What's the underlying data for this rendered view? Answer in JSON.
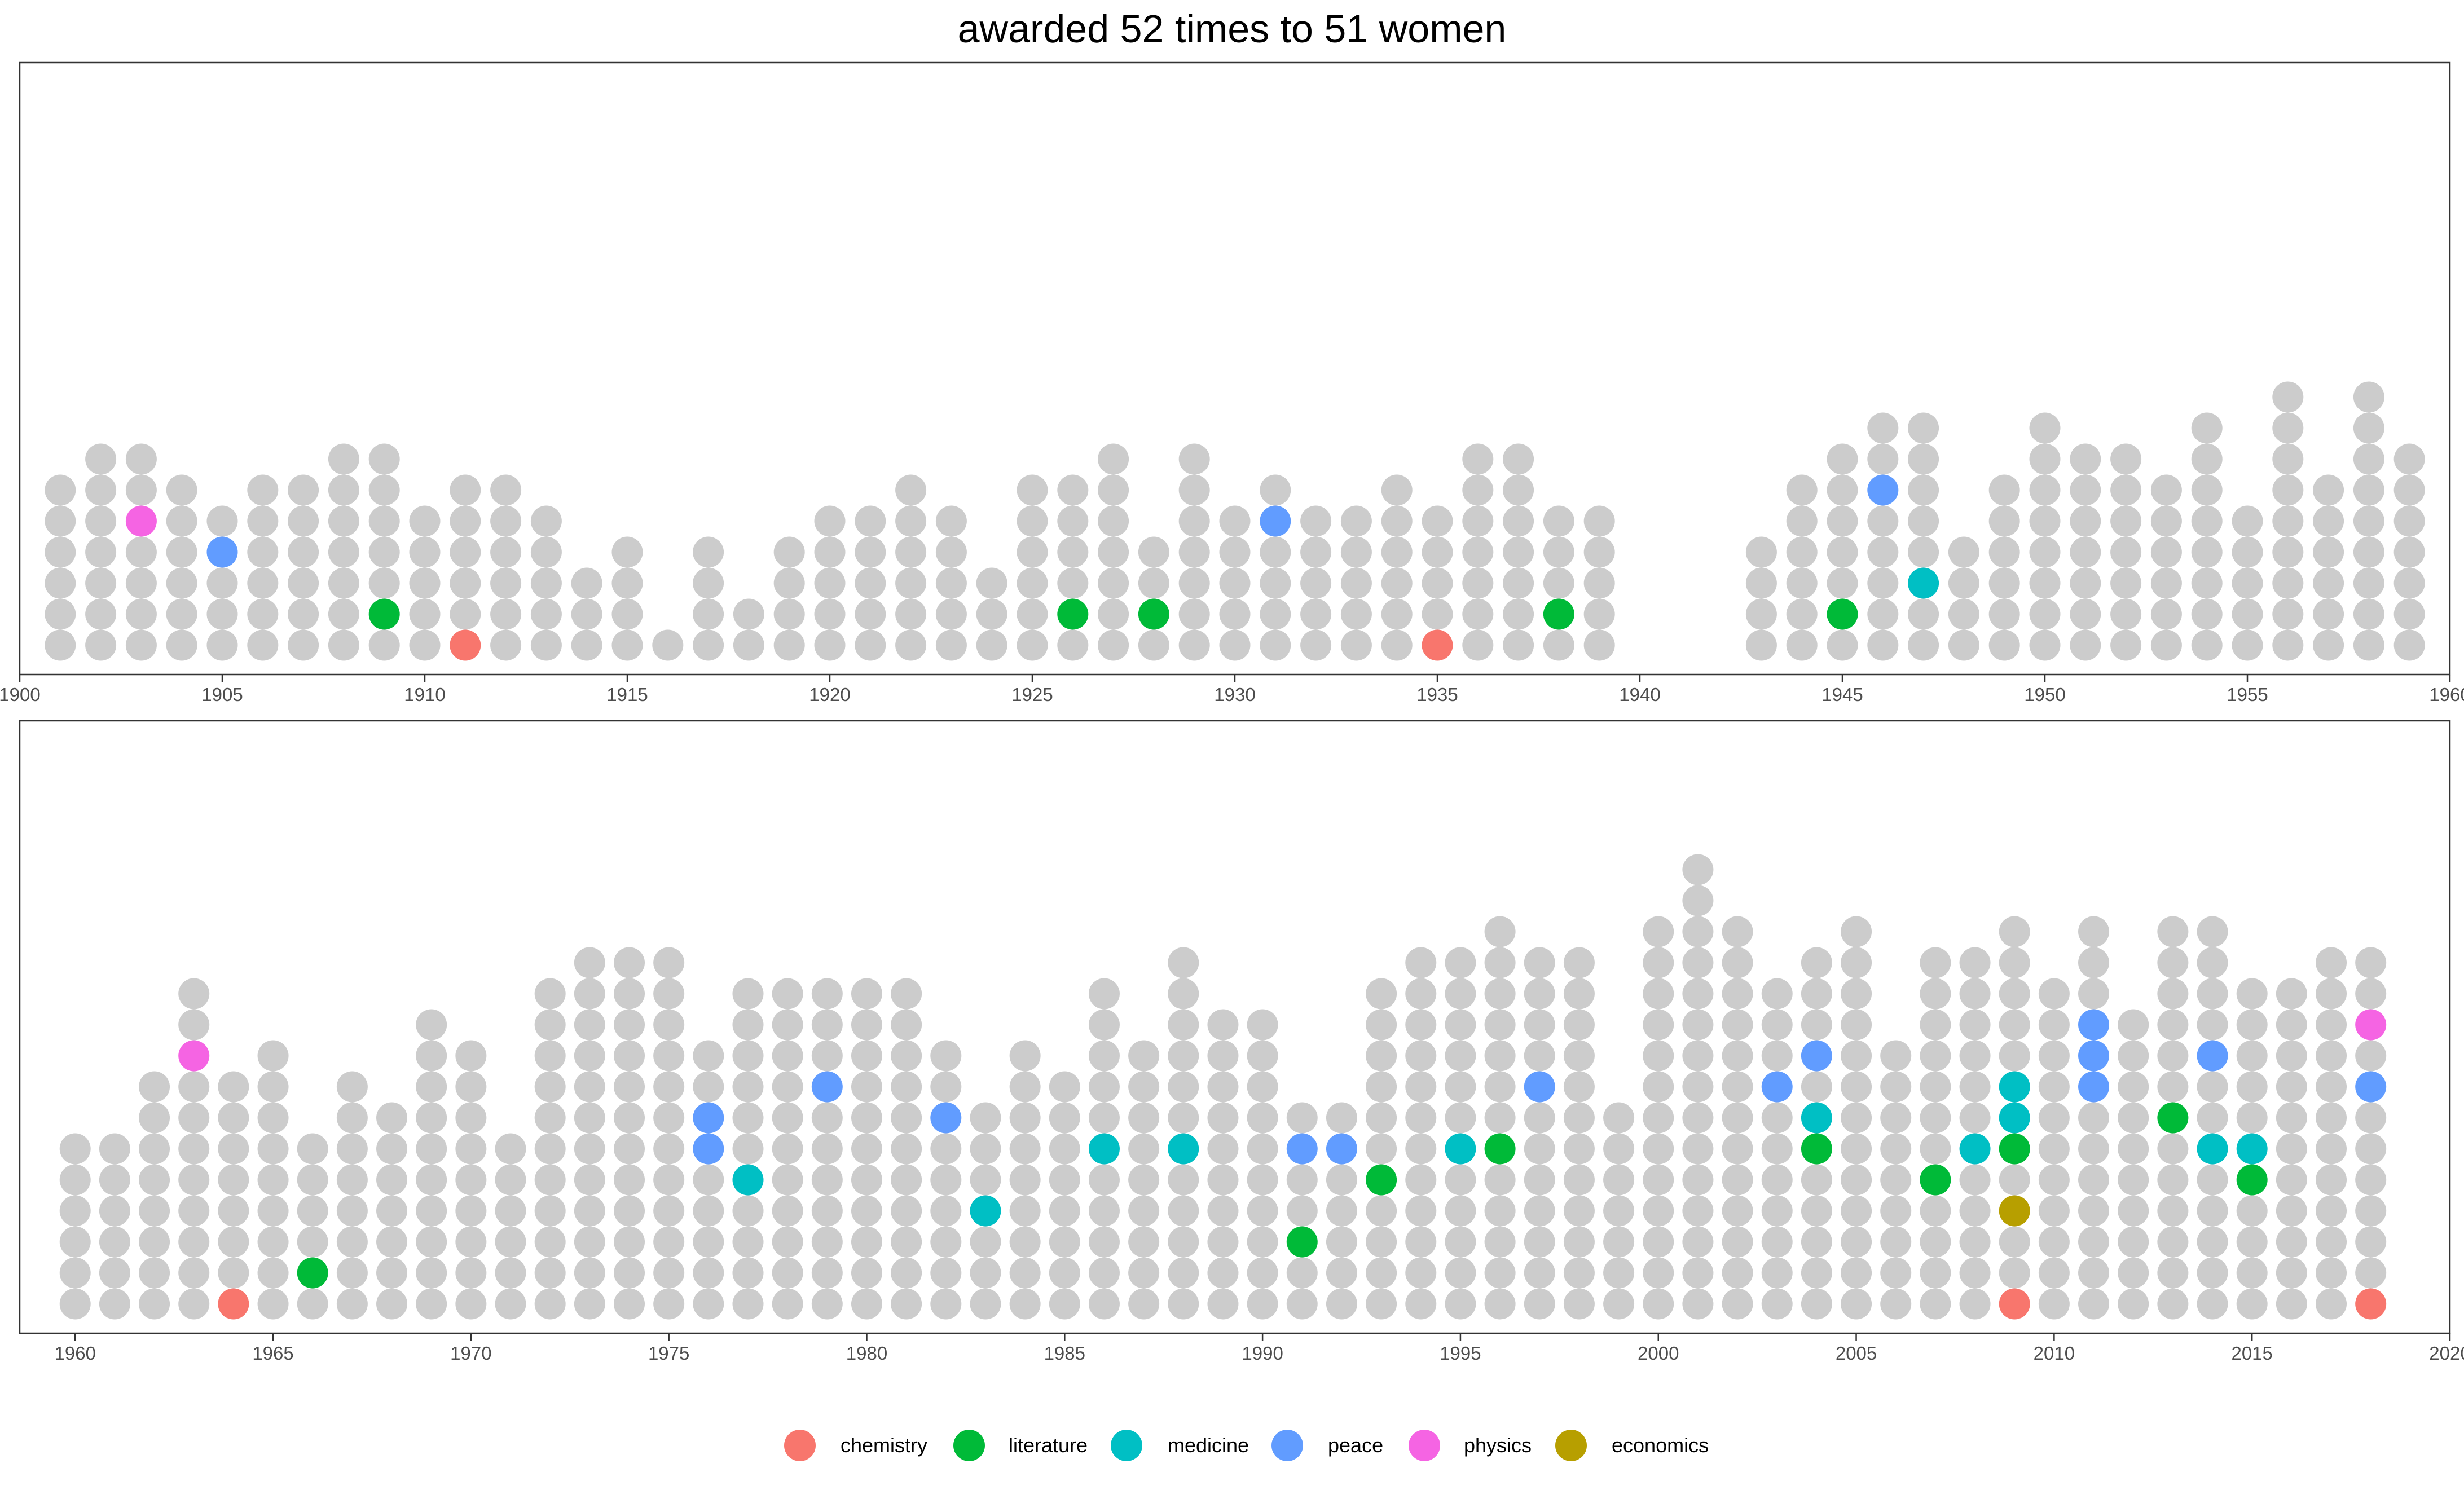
{
  "chart_data": {
    "type": "scatter",
    "title": "awarded 52 times to 51 women",
    "xlabel": "",
    "ylabel": "",
    "grid": false,
    "legend_position": "bottom",
    "base_color": "#cccccc",
    "legend": [
      {
        "name": "chemistry",
        "color": "#F8766D"
      },
      {
        "name": "literature",
        "color": "#00BA38"
      },
      {
        "name": "medicine",
        "color": "#00BFC4"
      },
      {
        "name": "peace",
        "color": "#619CFF"
      },
      {
        "name": "physics",
        "color": "#F564E3"
      },
      {
        "name": "economics",
        "color": "#B79F00"
      }
    ],
    "panels": [
      {
        "xlim": [
          1900,
          1960
        ],
        "x_ticks": [
          "1900",
          "1905",
          "1910",
          "1915",
          "1920",
          "1925",
          "1930",
          "1935",
          "1940",
          "1945",
          "1950",
          "1955",
          "1960"
        ],
        "years": [
          [
            1901,
            6
          ],
          [
            1902,
            7
          ],
          [
            1903,
            7
          ],
          [
            1904,
            6
          ],
          [
            1905,
            5
          ],
          [
            1906,
            6
          ],
          [
            1907,
            6
          ],
          [
            1908,
            7
          ],
          [
            1909,
            7
          ],
          [
            1910,
            5
          ],
          [
            1911,
            6
          ],
          [
            1912,
            6
          ],
          [
            1913,
            5
          ],
          [
            1914,
            3
          ],
          [
            1915,
            4
          ],
          [
            1916,
            1
          ],
          [
            1917,
            4
          ],
          [
            1918,
            2
          ],
          [
            1919,
            4
          ],
          [
            1920,
            5
          ],
          [
            1921,
            5
          ],
          [
            1922,
            6
          ],
          [
            1923,
            5
          ],
          [
            1924,
            3
          ],
          [
            1925,
            6
          ],
          [
            1926,
            6
          ],
          [
            1927,
            7
          ],
          [
            1928,
            4
          ],
          [
            1929,
            7
          ],
          [
            1930,
            5
          ],
          [
            1931,
            6
          ],
          [
            1932,
            5
          ],
          [
            1933,
            5
          ],
          [
            1934,
            6
          ],
          [
            1935,
            5
          ],
          [
            1936,
            7
          ],
          [
            1937,
            7
          ],
          [
            1938,
            5
          ],
          [
            1939,
            5
          ],
          [
            1943,
            4
          ],
          [
            1944,
            6
          ],
          [
            1945,
            7
          ],
          [
            1946,
            8
          ],
          [
            1947,
            8
          ],
          [
            1948,
            4
          ],
          [
            1949,
            6
          ],
          [
            1950,
            8
          ],
          [
            1951,
            7
          ],
          [
            1952,
            7
          ],
          [
            1953,
            6
          ],
          [
            1954,
            8
          ],
          [
            1955,
            5
          ],
          [
            1956,
            9
          ],
          [
            1957,
            6
          ],
          [
            1958,
            9
          ],
          [
            1959,
            7
          ]
        ],
        "highlights": [
          [
            1903,
            5,
            "physics"
          ],
          [
            1905,
            4,
            "peace"
          ],
          [
            1909,
            2,
            "literature"
          ],
          [
            1911,
            1,
            "chemistry"
          ],
          [
            1926,
            2,
            "literature"
          ],
          [
            1928,
            2,
            "literature"
          ],
          [
            1931,
            5,
            "peace"
          ],
          [
            1935,
            1,
            "chemistry"
          ],
          [
            1938,
            2,
            "literature"
          ],
          [
            1945,
            2,
            "literature"
          ],
          [
            1946,
            6,
            "peace"
          ],
          [
            1947,
            3,
            "medicine"
          ]
        ]
      },
      {
        "xlim": [
          1958.6,
          2020
        ],
        "x_ticks": [
          "1960",
          "1965",
          "1970",
          "1975",
          "1980",
          "1985",
          "1990",
          "1995",
          "2000",
          "2005",
          "2010",
          "2015",
          "2020"
        ],
        "years": [
          [
            1960,
            6
          ],
          [
            1961,
            6
          ],
          [
            1962,
            8
          ],
          [
            1963,
            11
          ],
          [
            1964,
            8
          ],
          [
            1965,
            9
          ],
          [
            1966,
            6
          ],
          [
            1967,
            8
          ],
          [
            1968,
            7
          ],
          [
            1969,
            10
          ],
          [
            1970,
            9
          ],
          [
            1971,
            6
          ],
          [
            1972,
            11
          ],
          [
            1973,
            12
          ],
          [
            1974,
            12
          ],
          [
            1975,
            12
          ],
          [
            1976,
            9
          ],
          [
            1977,
            11
          ],
          [
            1978,
            11
          ],
          [
            1979,
            11
          ],
          [
            1980,
            11
          ],
          [
            1981,
            11
          ],
          [
            1982,
            9
          ],
          [
            1983,
            7
          ],
          [
            1984,
            9
          ],
          [
            1985,
            8
          ],
          [
            1986,
            11
          ],
          [
            1987,
            9
          ],
          [
            1988,
            12
          ],
          [
            1989,
            10
          ],
          [
            1990,
            10
          ],
          [
            1991,
            7
          ],
          [
            1992,
            7
          ],
          [
            1993,
            11
          ],
          [
            1994,
            12
          ],
          [
            1995,
            12
          ],
          [
            1996,
            13
          ],
          [
            1997,
            12
          ],
          [
            1998,
            12
          ],
          [
            1999,
            7
          ],
          [
            2000,
            13
          ],
          [
            2001,
            15
          ],
          [
            2002,
            13
          ],
          [
            2003,
            11
          ],
          [
            2004,
            12
          ],
          [
            2005,
            13
          ],
          [
            2006,
            9
          ],
          [
            2007,
            12
          ],
          [
            2008,
            12
          ],
          [
            2009,
            13
          ],
          [
            2010,
            11
          ],
          [
            2011,
            13
          ],
          [
            2012,
            10
          ],
          [
            2013,
            13
          ],
          [
            2014,
            13
          ],
          [
            2015,
            11
          ],
          [
            2016,
            11
          ],
          [
            2017,
            12
          ],
          [
            2018,
            12
          ]
        ],
        "highlights": [
          [
            1963,
            9,
            "physics"
          ],
          [
            1964,
            1,
            "chemistry"
          ],
          [
            1966,
            2,
            "literature"
          ],
          [
            1976,
            6,
            "peace"
          ],
          [
            1976,
            7,
            "peace"
          ],
          [
            1977,
            5,
            "medicine"
          ],
          [
            1979,
            8,
            "peace"
          ],
          [
            1982,
            7,
            "peace"
          ],
          [
            1983,
            4,
            "medicine"
          ],
          [
            1986,
            6,
            "medicine"
          ],
          [
            1988,
            6,
            "medicine"
          ],
          [
            1991,
            3,
            "literature"
          ],
          [
            1991,
            6,
            "peace"
          ],
          [
            1992,
            6,
            "peace"
          ],
          [
            1993,
            5,
            "literature"
          ],
          [
            1995,
            6,
            "medicine"
          ],
          [
            1996,
            6,
            "literature"
          ],
          [
            1997,
            8,
            "peace"
          ],
          [
            2003,
            8,
            "peace"
          ],
          [
            2004,
            6,
            "literature"
          ],
          [
            2004,
            7,
            "medicine"
          ],
          [
            2004,
            9,
            "peace"
          ],
          [
            2007,
            5,
            "literature"
          ],
          [
            2008,
            6,
            "medicine"
          ],
          [
            2009,
            1,
            "chemistry"
          ],
          [
            2009,
            4,
            "economics"
          ],
          [
            2009,
            6,
            "literature"
          ],
          [
            2009,
            7,
            "medicine"
          ],
          [
            2009,
            8,
            "medicine"
          ],
          [
            2011,
            8,
            "peace"
          ],
          [
            2011,
            9,
            "peace"
          ],
          [
            2011,
            10,
            "peace"
          ],
          [
            2013,
            7,
            "literature"
          ],
          [
            2014,
            6,
            "medicine"
          ],
          [
            2014,
            9,
            "peace"
          ],
          [
            2015,
            5,
            "literature"
          ],
          [
            2015,
            6,
            "medicine"
          ],
          [
            2018,
            1,
            "chemistry"
          ],
          [
            2018,
            8,
            "peace"
          ],
          [
            2018,
            10,
            "physics"
          ]
        ]
      }
    ]
  }
}
